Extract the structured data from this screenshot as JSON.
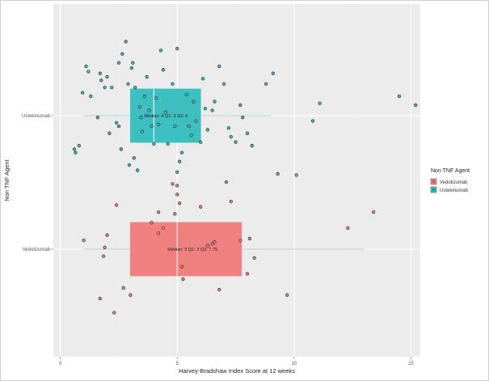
{
  "chart_data": {
    "type": "box",
    "orientation": "horizontal",
    "xlabel": "Harvey-Bradshaw Index Score at 12 weeks",
    "ylabel": "Non TNF Agent",
    "xlim": [
      -0.3,
      15.4
    ],
    "xticks": [
      0,
      5,
      10,
      15
    ],
    "categories": [
      "Vedolizumab",
      "Ustekinumab"
    ],
    "grid": true,
    "legend": {
      "title": "Non TNF Agent",
      "position": "right",
      "entries": [
        "Vedolizumab",
        "Ustekinumab"
      ]
    },
    "colors": {
      "Vedolizumab": "#f08080",
      "Ustekinumab": "#3dbfbf",
      "panel": "#ebebeb",
      "grid": "#ffffff",
      "point_stroke": "#333333"
    },
    "series": [
      {
        "name": "Vedolizumab",
        "box": {
          "whisker_low": 1,
          "q1": 3,
          "median": 5,
          "q3": 7.75,
          "whisker_high": 13
        },
        "annotation": "Median: 5 Q1: 3 Q3: 7.75",
        "points": [
          [
            1.0,
            0.05
          ],
          [
            2.0,
            0.08
          ],
          [
            1.9,
            0.01
          ],
          [
            1.85,
            -0.04
          ],
          [
            2.4,
            0.25
          ],
          [
            1.7,
            -0.28
          ],
          [
            2.3,
            -0.36
          ],
          [
            2.7,
            -0.22
          ],
          [
            3.0,
            -0.26
          ],
          [
            3.9,
            0.15
          ],
          [
            4.2,
            0.09
          ],
          [
            4.4,
            0.12
          ],
          [
            4.2,
            0.21
          ],
          [
            4.8,
            0.37
          ],
          [
            5.0,
            0.36
          ],
          [
            5.0,
            0.31
          ],
          [
            4.9,
            0.2
          ],
          [
            5.1,
            0.26
          ],
          [
            5.2,
            -0.1
          ],
          [
            5.25,
            -0.17
          ],
          [
            6.0,
            0.24
          ],
          [
            6.3,
            0.02
          ],
          [
            6.5,
            0.03
          ],
          [
            6.6,
            0.04
          ],
          [
            6.8,
            -0.23
          ],
          [
            7.1,
            0.38
          ],
          [
            7.3,
            0.27
          ],
          [
            7.7,
            0.05
          ],
          [
            8.1,
            0.06
          ],
          [
            8.0,
            -0.14
          ],
          [
            8.3,
            -0.05
          ],
          [
            9.7,
            -0.26
          ],
          [
            10.1,
            0.42
          ],
          [
            12.3,
            0.12
          ],
          [
            13.4,
            0.21
          ]
        ]
      },
      {
        "name": "Ustekinumab",
        "box": {
          "whisker_low": 1,
          "q1": 3,
          "median": 4,
          "q3": 6,
          "whisker_high": 9
        },
        "annotation": "Median: 4 Q1: 3 Q3: 6",
        "points": [
          [
            0.6,
            -0.19
          ],
          [
            0.65,
            -0.21
          ],
          [
            0.8,
            -0.17
          ],
          [
            0.95,
            0.13
          ],
          [
            1.1,
            0.28
          ],
          [
            1.2,
            0.25
          ],
          [
            1.3,
            0.11
          ],
          [
            1.6,
            -0.01
          ],
          [
            1.7,
            0.24
          ],
          [
            1.75,
            0.2
          ],
          [
            1.9,
            0.16
          ],
          [
            2.0,
            0.22
          ],
          [
            2.1,
            -0.1
          ],
          [
            2.2,
            0.16
          ],
          [
            2.4,
            -0.04
          ],
          [
            2.5,
            -0.06
          ],
          [
            2.65,
            0.35
          ],
          [
            2.5,
            0.3
          ],
          [
            2.6,
            -0.19
          ],
          [
            2.8,
            0.42
          ],
          [
            2.9,
            0.18
          ],
          [
            2.95,
            -0.28
          ],
          [
            3.05,
            0.27
          ],
          [
            3.1,
            0.3
          ],
          [
            3.15,
            -0.24
          ],
          [
            3.2,
            0.16
          ],
          [
            3.3,
            -0.31
          ],
          [
            3.4,
            0.05
          ],
          [
            3.45,
            -0.01
          ],
          [
            3.5,
            -0.09
          ],
          [
            3.6,
            0.11
          ],
          [
            3.7,
            0.22
          ],
          [
            3.8,
            0.03
          ],
          [
            3.9,
            -0.06
          ],
          [
            4.0,
            -0.16
          ],
          [
            4.1,
            0.1
          ],
          [
            4.2,
            -0.05
          ],
          [
            4.3,
            0.37
          ],
          [
            4.4,
            0.26
          ],
          [
            4.5,
            0.02
          ],
          [
            4.6,
            -0.16
          ],
          [
            4.8,
            0.18
          ],
          [
            4.9,
            -0.06
          ],
          [
            5.0,
            0.38
          ],
          [
            5.0,
            -0.32
          ],
          [
            5.1,
            -0.26
          ],
          [
            5.2,
            -0.21
          ],
          [
            5.4,
            0.12
          ],
          [
            5.5,
            -0.06
          ],
          [
            5.6,
            -0.11
          ],
          [
            5.7,
            0.08
          ],
          [
            5.8,
            -0.03
          ],
          [
            6.0,
            -0.15
          ],
          [
            6.1,
            0.21
          ],
          [
            6.2,
            0.04
          ],
          [
            6.3,
            -0.08
          ],
          [
            6.5,
            0.03
          ],
          [
            6.6,
            0.08
          ],
          [
            6.8,
            0.28
          ],
          [
            7.0,
            0.18
          ],
          [
            7.2,
            -0.07
          ],
          [
            7.3,
            -0.12
          ],
          [
            7.5,
            -0.15
          ],
          [
            7.7,
            0.06
          ],
          [
            7.8,
            -0.01
          ],
          [
            8.0,
            -0.1
          ],
          [
            8.2,
            -0.17
          ],
          [
            8.8,
            0.18
          ],
          [
            9.1,
            0.24
          ],
          [
            9.3,
            -0.33
          ],
          [
            10.8,
            -0.03
          ],
          [
            11.1,
            0.07
          ],
          [
            14.5,
            0.11
          ],
          [
            15.2,
            0.06
          ]
        ]
      }
    ]
  }
}
